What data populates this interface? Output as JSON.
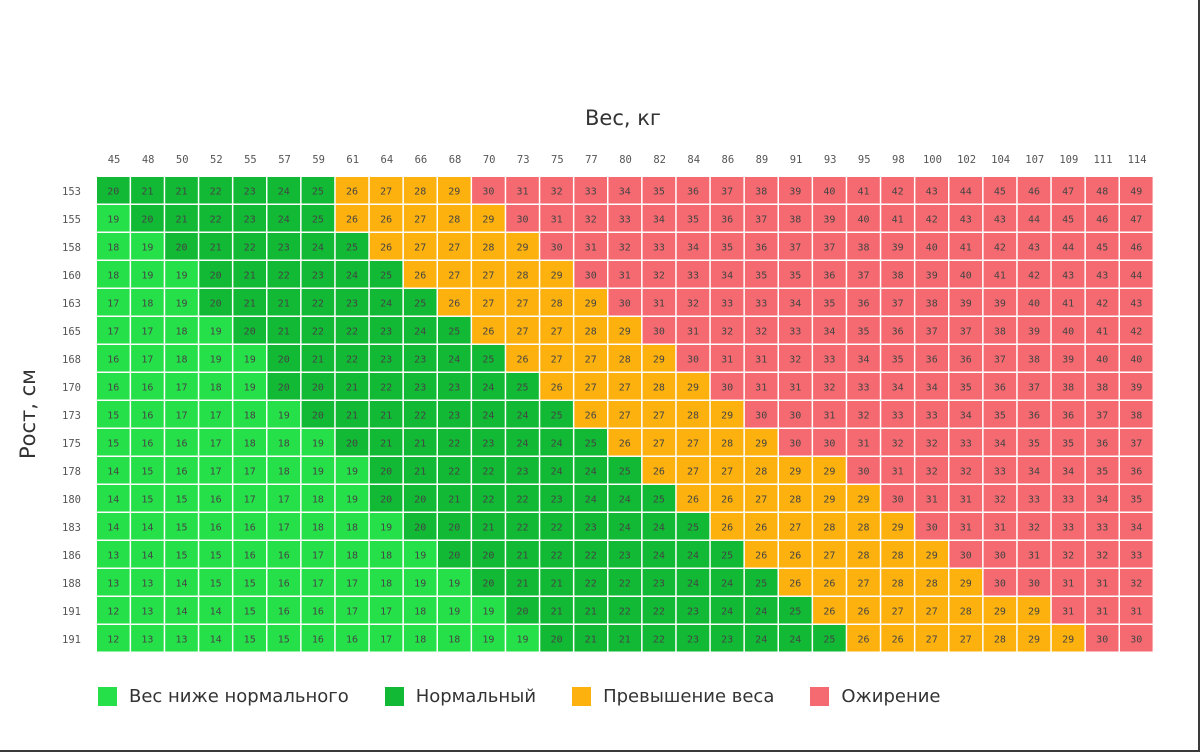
{
  "chart_data": {
    "type": "heatmap",
    "xlabel": "Вес, кг",
    "ylabel": "Рост, см",
    "x": [
      "45",
      "48",
      "50",
      "52",
      "55",
      "57",
      "59",
      "61",
      "64",
      "66",
      "68",
      "70",
      "73",
      "75",
      "77",
      "80",
      "82",
      "84",
      "86",
      "89",
      "91",
      "93",
      "95",
      "98",
      "100",
      "102",
      "104",
      "107",
      "109",
      "111",
      "114"
    ],
    "y": [
      "153",
      "155",
      "158",
      "160",
      "163",
      "165",
      "168",
      "170",
      "173",
      "175",
      "178",
      "180",
      "183",
      "186",
      "188",
      "191",
      "191"
    ],
    "values": [
      [
        20,
        21,
        21,
        22,
        23,
        24,
        25,
        26,
        27,
        28,
        29,
        30,
        31,
        32,
        33,
        34,
        35,
        36,
        37,
        38,
        39,
        40,
        41,
        42,
        43,
        44,
        45,
        46,
        47,
        48,
        49
      ],
      [
        19,
        20,
        21,
        22,
        23,
        24,
        25,
        26,
        26,
        27,
        28,
        29,
        30,
        31,
        32,
        33,
        34,
        35,
        36,
        37,
        38,
        39,
        40,
        41,
        42,
        43,
        43,
        44,
        45,
        46,
        47
      ],
      [
        18,
        19,
        20,
        21,
        22,
        23,
        24,
        25,
        26,
        27,
        27,
        28,
        29,
        30,
        31,
        32,
        33,
        34,
        35,
        36,
        37,
        37,
        38,
        39,
        40,
        41,
        42,
        43,
        44,
        45,
        46
      ],
      [
        18,
        19,
        19,
        20,
        21,
        22,
        23,
        24,
        25,
        26,
        27,
        27,
        28,
        29,
        30,
        31,
        32,
        33,
        34,
        35,
        35,
        36,
        37,
        38,
        39,
        40,
        41,
        42,
        43,
        43,
        44
      ],
      [
        17,
        18,
        19,
        20,
        21,
        21,
        22,
        23,
        24,
        25,
        26,
        27,
        27,
        28,
        29,
        30,
        31,
        32,
        33,
        33,
        34,
        35,
        36,
        37,
        38,
        39,
        39,
        40,
        41,
        42,
        43
      ],
      [
        17,
        17,
        18,
        19,
        20,
        21,
        22,
        22,
        23,
        24,
        25,
        26,
        27,
        27,
        28,
        29,
        30,
        31,
        32,
        32,
        33,
        34,
        35,
        36,
        37,
        37,
        38,
        39,
        40,
        41,
        42
      ],
      [
        16,
        17,
        18,
        19,
        19,
        20,
        21,
        22,
        23,
        23,
        24,
        25,
        26,
        27,
        27,
        28,
        29,
        30,
        31,
        31,
        32,
        33,
        34,
        35,
        36,
        36,
        37,
        38,
        39,
        40,
        40
      ],
      [
        16,
        16,
        17,
        18,
        19,
        20,
        20,
        21,
        22,
        23,
        23,
        24,
        25,
        26,
        27,
        27,
        28,
        29,
        30,
        31,
        31,
        32,
        33,
        34,
        34,
        35,
        36,
        37,
        38,
        38,
        39
      ],
      [
        15,
        16,
        17,
        17,
        18,
        19,
        20,
        21,
        21,
        22,
        23,
        24,
        24,
        25,
        26,
        27,
        27,
        28,
        29,
        30,
        30,
        31,
        32,
        33,
        33,
        34,
        35,
        36,
        36,
        37,
        38
      ],
      [
        15,
        16,
        16,
        17,
        18,
        18,
        19,
        20,
        21,
        21,
        22,
        23,
        24,
        24,
        25,
        26,
        27,
        27,
        28,
        29,
        30,
        30,
        31,
        32,
        32,
        33,
        34,
        35,
        35,
        36,
        37
      ],
      [
        14,
        15,
        16,
        17,
        17,
        18,
        19,
        19,
        20,
        21,
        22,
        22,
        23,
        24,
        24,
        25,
        26,
        27,
        27,
        28,
        29,
        29,
        30,
        31,
        32,
        32,
        33,
        34,
        34,
        35,
        36
      ],
      [
        14,
        15,
        15,
        16,
        17,
        17,
        18,
        19,
        20,
        20,
        21,
        22,
        22,
        23,
        24,
        24,
        25,
        26,
        26,
        27,
        28,
        29,
        29,
        30,
        31,
        31,
        32,
        33,
        33,
        34,
        35
      ],
      [
        14,
        14,
        15,
        16,
        16,
        17,
        18,
        18,
        19,
        20,
        20,
        21,
        22,
        22,
        23,
        24,
        24,
        25,
        26,
        26,
        27,
        28,
        28,
        29,
        30,
        31,
        31,
        32,
        33,
        33,
        34
      ],
      [
        13,
        14,
        15,
        15,
        16,
        16,
        17,
        18,
        18,
        19,
        20,
        20,
        21,
        22,
        22,
        23,
        24,
        24,
        25,
        26,
        26,
        27,
        28,
        28,
        29,
        30,
        30,
        31,
        32,
        32,
        33
      ],
      [
        13,
        13,
        14,
        15,
        15,
        16,
        17,
        17,
        18,
        19,
        19,
        20,
        21,
        21,
        22,
        22,
        23,
        24,
        24,
        25,
        26,
        26,
        27,
        28,
        28,
        29,
        30,
        30,
        31,
        31,
        32
      ],
      [
        12,
        13,
        14,
        14,
        15,
        16,
        16,
        17,
        17,
        18,
        19,
        19,
        20,
        21,
        21,
        22,
        22,
        23,
        24,
        24,
        25,
        26,
        26,
        27,
        27,
        28,
        29,
        29,
        31,
        31,
        31
      ],
      [
        12,
        13,
        13,
        14,
        15,
        15,
        16,
        16,
        17,
        18,
        18,
        19,
        19,
        20,
        21,
        21,
        22,
        23,
        23,
        24,
        24,
        25,
        26,
        26,
        27,
        27,
        28,
        29,
        29,
        30,
        30
      ]
    ],
    "categories": [
      {
        "name": "Вес ниже нормального",
        "color": "#26e04a",
        "max": 19
      },
      {
        "name": "Нормальный",
        "color": "#11b934",
        "max": 25
      },
      {
        "name": "Превышение веса",
        "color": "#fdb10e",
        "max": 29
      },
      {
        "name": "Ожирение",
        "color": "#f56a70",
        "max": 99
      }
    ],
    "legend_position": "bottom-left",
    "grid": true
  }
}
